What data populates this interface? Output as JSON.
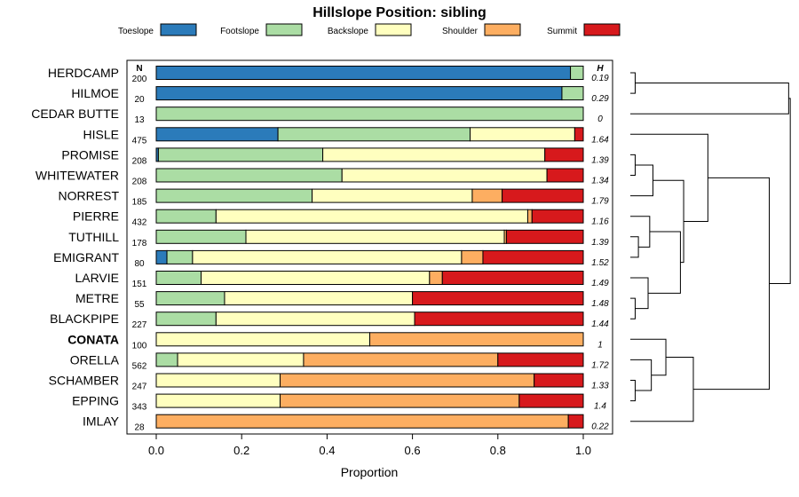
{
  "chart_data": {
    "type": "bar",
    "orientation": "horizontal",
    "stacked": true,
    "title": "Hillslope Position: sibling",
    "xlabel": "Proportion",
    "ylabel": "",
    "xlim": [
      0,
      1
    ],
    "xticks": [
      "0.0",
      "0.2",
      "0.4",
      "0.6",
      "0.8",
      "1.0"
    ],
    "n_header": "N",
    "h_header": "H",
    "legend": [
      {
        "name": "Toeslope",
        "color": "#2b7bba"
      },
      {
        "name": "Footslope",
        "color": "#abdda4"
      },
      {
        "name": "Backslope",
        "color": "#ffffbf"
      },
      {
        "name": "Shoulder",
        "color": "#fdae61"
      },
      {
        "name": "Summit",
        "color": "#d7191c"
      }
    ],
    "categories": [
      "HERDCAMP",
      "HILMOE",
      "CEDAR BUTTE",
      "HISLE",
      "PROMISE",
      "WHITEWATER",
      "NORREST",
      "PIERRE",
      "TUTHILL",
      "EMIGRANT",
      "LARVIE",
      "METRE",
      "BLACKPIPE",
      "CONATA",
      "ORELLA",
      "SCHAMBER",
      "EPPING",
      "IMLAY"
    ],
    "highlight": "CONATA",
    "n": [
      "200",
      "20",
      "13",
      "475",
      "208",
      "208",
      "185",
      "432",
      "178",
      "80",
      "151",
      "55",
      "227",
      "100",
      "562",
      "247",
      "343",
      "28"
    ],
    "h": [
      "0.19",
      "0.29",
      "0",
      "1.64",
      "1.39",
      "1.34",
      "1.79",
      "1.16",
      "1.39",
      "1.52",
      "1.49",
      "1.48",
      "1.44",
      "1",
      "1.72",
      "1.33",
      "1.4",
      "0.22"
    ],
    "series": [
      {
        "name": "Toeslope",
        "values": [
          0.97,
          0.95,
          0,
          0.285,
          0.005,
          0,
          0,
          0,
          0,
          0.025,
          0,
          0,
          0,
          0,
          0,
          0,
          0,
          0
        ]
      },
      {
        "name": "Footslope",
        "values": [
          0.03,
          0.05,
          1.0,
          0.45,
          0.385,
          0.435,
          0.365,
          0.14,
          0.21,
          0.06,
          0.105,
          0.16,
          0.14,
          0,
          0.05,
          0,
          0,
          0
        ]
      },
      {
        "name": "Backslope",
        "values": [
          0,
          0,
          0,
          0.245,
          0.52,
          0.48,
          0.375,
          0.73,
          0.605,
          0.63,
          0.535,
          0.44,
          0.465,
          0.5,
          0.295,
          0.29,
          0.29,
          0
        ]
      },
      {
        "name": "Shoulder",
        "values": [
          0,
          0,
          0,
          0,
          0,
          0,
          0.07,
          0.01,
          0.005,
          0.05,
          0.03,
          0,
          0,
          0.5,
          0.455,
          0.595,
          0.56,
          0.965
        ]
      },
      {
        "name": "Summit",
        "values": [
          0,
          0,
          0,
          0.02,
          0.09,
          0.085,
          0.19,
          0.12,
          0.18,
          0.235,
          0.33,
          0.4,
          0.395,
          0,
          0.2,
          0.115,
          0.15,
          0.035
        ]
      }
    ],
    "dendrogram": {
      "merges": [
        {
          "a": "HERDCAMP",
          "b": "HILMOE",
          "height": 0.05
        },
        {
          "a": "SCHAMBER",
          "b": "EPPING",
          "height": 0.05
        },
        {
          "a": "TUTHILL",
          "b": "EMIGRANT",
          "height": 0.06
        },
        {
          "a": "PROMISE",
          "b": "WHITEWATER",
          "height": 0.07
        },
        {
          "a": "METRE",
          "b": "BLACKPIPE",
          "height": 0.07
        },
        {
          "a": "PIERRE",
          "b": "PIERRE+",
          "height": 0.09
        },
        {
          "a": "SCHAMBER+",
          "b": "ORELLA",
          "height": 0.1
        },
        {
          "a": "HERDCAMP+",
          "b": "CEDAR BUTTE",
          "height": 1.0
        },
        {
          "a": "PROMISE+",
          "b": "NORREST",
          "height": 0.16
        },
        {
          "a": "ORELLA+",
          "b": "IMLAY",
          "height": 0.16
        },
        {
          "a": "LARVIE",
          "b": "METRE+",
          "height": 0.21
        },
        {
          "a": "CONATA",
          "b": "ORELLA+",
          "height": 0.28
        },
        {
          "a": "PIERRE+",
          "b": "LARVIE+",
          "height": 0.42
        },
        {
          "a": "PROMISE+",
          "b": "PIERRE+",
          "height": 0.62
        },
        {
          "a": "CONATA+",
          "b": "IMLAY+",
          "height": 1.0
        },
        {
          "a": "HISLE",
          "b": "PROMISE+",
          "height": 0.55
        },
        {
          "a": "HISLE+",
          "b": "CONATA+",
          "height": 1.0
        },
        {
          "a": "root",
          "b": "root",
          "height": 1.0
        }
      ]
    }
  }
}
